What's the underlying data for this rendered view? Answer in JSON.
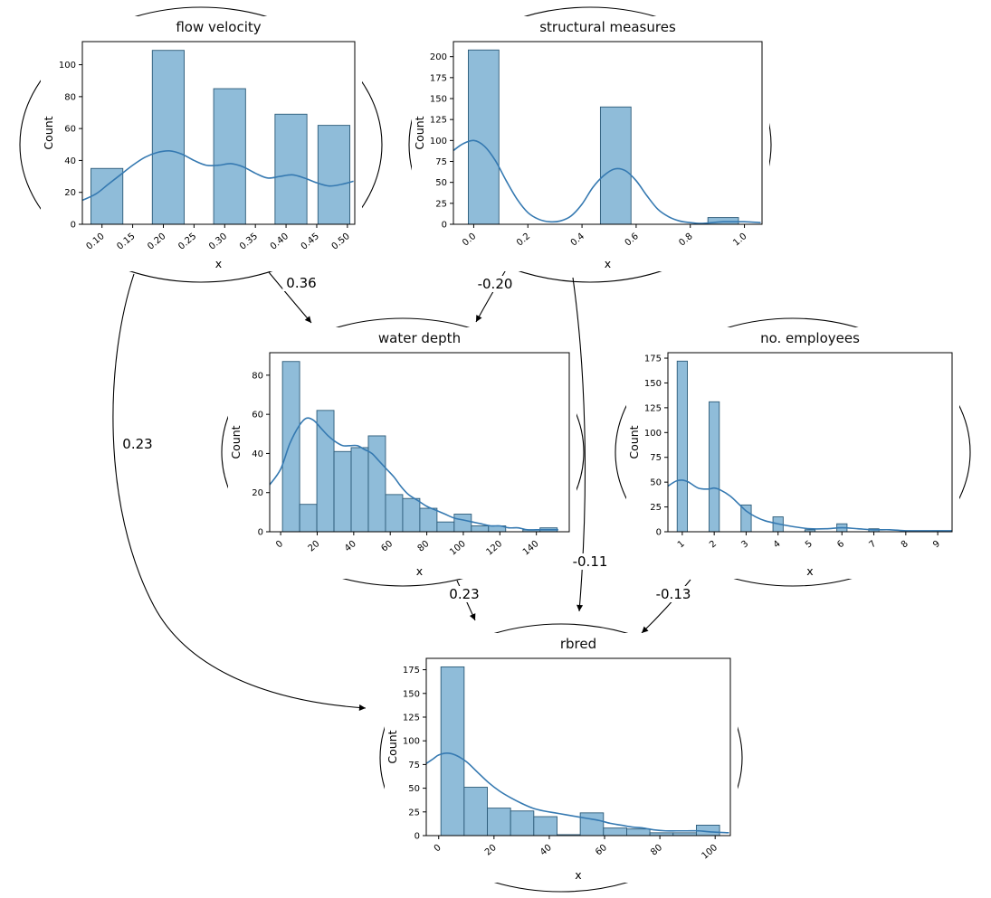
{
  "figure": {
    "background": "#ffffff"
  },
  "style": {
    "bar_fill": "#8fbcd9",
    "bar_edge": "#2b5a78",
    "kde_color": "#3579b1",
    "axis_color": "#000000",
    "edge_color": "#000000"
  },
  "chart_data": [
    {
      "id": "flow_velocity",
      "type": "histogram",
      "title": "flow velocity",
      "xlabel": "x",
      "ylabel": "Count",
      "xlim": [
        0.068,
        0.512
      ],
      "ylim": [
        0,
        114.5
      ],
      "xtick_vals": [
        0.1,
        0.15,
        0.2,
        0.25,
        0.3,
        0.35,
        0.4,
        0.45,
        0.5
      ],
      "xtick_labels": [
        "0.10",
        "0.15",
        "0.20",
        "0.25",
        "0.30",
        "0.35",
        "0.40",
        "0.45",
        "0.50"
      ],
      "ytick_vals": [
        0,
        20,
        40,
        60,
        80,
        100
      ],
      "ytick_labels": [
        "0",
        "20",
        "40",
        "60",
        "80",
        "100"
      ],
      "bars": [
        [
          0.082,
          0.052,
          35
        ],
        [
          0.182,
          0.052,
          109
        ],
        [
          0.282,
          0.052,
          85
        ],
        [
          0.382,
          0.052,
          69
        ],
        [
          0.452,
          0.052,
          62
        ]
      ],
      "kde": [
        [
          0.068,
          15
        ],
        [
          0.09,
          19
        ],
        [
          0.11,
          25
        ],
        [
          0.13,
          31
        ],
        [
          0.15,
          37
        ],
        [
          0.17,
          42
        ],
        [
          0.19,
          45
        ],
        [
          0.21,
          46
        ],
        [
          0.23,
          44
        ],
        [
          0.25,
          40
        ],
        [
          0.27,
          37
        ],
        [
          0.29,
          37
        ],
        [
          0.31,
          38
        ],
        [
          0.33,
          36
        ],
        [
          0.35,
          32
        ],
        [
          0.37,
          29
        ],
        [
          0.39,
          30
        ],
        [
          0.41,
          31
        ],
        [
          0.43,
          29
        ],
        [
          0.45,
          26
        ],
        [
          0.47,
          24
        ],
        [
          0.49,
          25
        ],
        [
          0.51,
          27
        ]
      ]
    },
    {
      "id": "structural_measures",
      "type": "histogram",
      "title": "structural measures",
      "xlabel": "x",
      "ylabel": "Count",
      "xlim": [
        -0.075,
        1.065
      ],
      "ylim": [
        0,
        218
      ],
      "xtick_vals": [
        0.0,
        0.2,
        0.4,
        0.6,
        0.8,
        1.0
      ],
      "xtick_labels": [
        "0.0",
        "0.2",
        "0.4",
        "0.6",
        "0.8",
        "1.0"
      ],
      "ytick_vals": [
        0,
        25,
        50,
        75,
        100,
        125,
        150,
        175,
        200
      ],
      "ytick_labels": [
        "0",
        "25",
        "50",
        "75",
        "100",
        "125",
        "150",
        "175",
        "200"
      ],
      "bars": [
        [
          -0.02,
          0.113,
          208
        ],
        [
          0.468,
          0.113,
          140
        ],
        [
          0.865,
          0.113,
          8
        ]
      ],
      "kde": [
        [
          -0.075,
          88
        ],
        [
          -0.04,
          96
        ],
        [
          0.0,
          100
        ],
        [
          0.04,
          93
        ],
        [
          0.08,
          76
        ],
        [
          0.12,
          52
        ],
        [
          0.16,
          30
        ],
        [
          0.2,
          14
        ],
        [
          0.24,
          6
        ],
        [
          0.28,
          3
        ],
        [
          0.32,
          4
        ],
        [
          0.36,
          10
        ],
        [
          0.4,
          24
        ],
        [
          0.44,
          44
        ],
        [
          0.48,
          58
        ],
        [
          0.52,
          66
        ],
        [
          0.56,
          64
        ],
        [
          0.6,
          52
        ],
        [
          0.64,
          34
        ],
        [
          0.68,
          18
        ],
        [
          0.72,
          9
        ],
        [
          0.76,
          4
        ],
        [
          0.8,
          2
        ],
        [
          0.84,
          1
        ],
        [
          0.88,
          2
        ],
        [
          0.92,
          3
        ],
        [
          0.96,
          3
        ],
        [
          1.0,
          3
        ],
        [
          1.06,
          2
        ]
      ]
    },
    {
      "id": "water_depth",
      "type": "histogram",
      "title": "water depth",
      "xlabel": "x",
      "ylabel": "Count",
      "xlim": [
        -6,
        158
      ],
      "ylim": [
        0,
        91.5
      ],
      "xtick_vals": [
        0,
        20,
        40,
        60,
        80,
        100,
        120,
        140
      ],
      "xtick_labels": [
        "0",
        "20",
        "40",
        "60",
        "80",
        "100",
        "120",
        "140"
      ],
      "ytick_vals": [
        0,
        20,
        40,
        60,
        80
      ],
      "ytick_labels": [
        "0",
        "20",
        "40",
        "60",
        "80"
      ],
      "bars": [
        [
          1,
          9.4,
          87
        ],
        [
          10.4,
          9.4,
          14
        ],
        [
          19.8,
          9.4,
          62
        ],
        [
          29.2,
          9.4,
          41
        ],
        [
          38.6,
          9.4,
          43
        ],
        [
          48,
          9.4,
          49
        ],
        [
          57.4,
          9.4,
          19
        ],
        [
          66.8,
          9.4,
          17
        ],
        [
          76.2,
          9.4,
          12
        ],
        [
          85.6,
          9.4,
          5
        ],
        [
          95,
          9.4,
          9
        ],
        [
          104.4,
          9.4,
          3
        ],
        [
          113.8,
          9.4,
          3
        ],
        [
          123.2,
          9.4,
          0
        ],
        [
          132.6,
          9.4,
          1
        ],
        [
          142,
          9.4,
          2
        ]
      ],
      "kde": [
        [
          -6,
          24
        ],
        [
          0,
          32
        ],
        [
          5,
          45
        ],
        [
          10,
          54
        ],
        [
          14,
          58
        ],
        [
          18,
          57
        ],
        [
          22,
          53
        ],
        [
          26,
          49
        ],
        [
          30,
          46
        ],
        [
          34,
          44
        ],
        [
          38,
          44
        ],
        [
          42,
          44
        ],
        [
          46,
          42
        ],
        [
          50,
          40
        ],
        [
          54,
          36
        ],
        [
          58,
          32
        ],
        [
          62,
          28
        ],
        [
          66,
          23
        ],
        [
          70,
          19
        ],
        [
          75,
          16
        ],
        [
          80,
          13
        ],
        [
          85,
          11
        ],
        [
          90,
          9
        ],
        [
          95,
          7
        ],
        [
          100,
          6
        ],
        [
          105,
          5
        ],
        [
          110,
          4
        ],
        [
          115,
          3
        ],
        [
          120,
          3
        ],
        [
          125,
          2
        ],
        [
          130,
          2
        ],
        [
          135,
          1
        ],
        [
          140,
          1
        ],
        [
          145,
          1
        ],
        [
          152,
          1
        ]
      ]
    },
    {
      "id": "no_employees",
      "type": "histogram",
      "title": "no. employees",
      "xlabel": "x",
      "ylabel": "Count",
      "xlim": [
        0.55,
        9.45
      ],
      "ylim": [
        0,
        180.5
      ],
      "xtick_vals": [
        1,
        2,
        3,
        4,
        5,
        6,
        7,
        8,
        9
      ],
      "xtick_labels": [
        "1",
        "2",
        "3",
        "4",
        "5",
        "6",
        "7",
        "8",
        "9"
      ],
      "ytick_vals": [
        0,
        25,
        50,
        75,
        100,
        125,
        150,
        175
      ],
      "ytick_labels": [
        "0",
        "25",
        "50",
        "75",
        "100",
        "125",
        "150",
        "175"
      ],
      "bars": [
        [
          0.84,
          0.32,
          172
        ],
        [
          1.84,
          0.32,
          131
        ],
        [
          2.84,
          0.32,
          27
        ],
        [
          3.84,
          0.32,
          15
        ],
        [
          4.84,
          0.32,
          2
        ],
        [
          5.84,
          0.32,
          8
        ],
        [
          6.84,
          0.32,
          3
        ],
        [
          7.84,
          0.32,
          1
        ],
        [
          8.84,
          0.32,
          1
        ]
      ],
      "kde": [
        [
          0.55,
          46
        ],
        [
          0.8,
          51
        ],
        [
          1.0,
          52
        ],
        [
          1.2,
          50
        ],
        [
          1.5,
          44
        ],
        [
          1.8,
          43
        ],
        [
          2.0,
          44
        ],
        [
          2.2,
          42
        ],
        [
          2.5,
          36
        ],
        [
          2.8,
          27
        ],
        [
          3.0,
          21
        ],
        [
          3.3,
          15
        ],
        [
          3.6,
          11
        ],
        [
          4.0,
          8
        ],
        [
          4.5,
          5
        ],
        [
          5.0,
          3
        ],
        [
          5.5,
          3
        ],
        [
          6.0,
          4
        ],
        [
          6.5,
          3
        ],
        [
          7.0,
          2
        ],
        [
          7.5,
          2
        ],
        [
          8.0,
          1
        ],
        [
          8.5,
          1
        ],
        [
          9.0,
          1
        ],
        [
          9.45,
          1
        ]
      ]
    },
    {
      "id": "rbred",
      "type": "histogram",
      "title": "rbred",
      "xlabel": "x",
      "ylabel": "Count",
      "xlim": [
        -4.5,
        105.5
      ],
      "ylim": [
        0,
        187
      ],
      "xtick_vals": [
        0,
        20,
        40,
        60,
        80,
        100
      ],
      "xtick_labels": [
        "0",
        "20",
        "40",
        "60",
        "80",
        "100"
      ],
      "ytick_vals": [
        0,
        25,
        50,
        75,
        100,
        125,
        150,
        175
      ],
      "ytick_labels": [
        "0",
        "25",
        "50",
        "75",
        "100",
        "125",
        "150",
        "175"
      ],
      "bars": [
        [
          0.8,
          8.4,
          178
        ],
        [
          9.2,
          8.4,
          51
        ],
        [
          17.6,
          8.4,
          29
        ],
        [
          26,
          8.4,
          26
        ],
        [
          34.4,
          8.4,
          20
        ],
        [
          42.8,
          8.4,
          1
        ],
        [
          51.2,
          8.4,
          24
        ],
        [
          59.6,
          8.4,
          8
        ],
        [
          68,
          8.4,
          7
        ],
        [
          76.4,
          8.4,
          3
        ],
        [
          84.8,
          8.4,
          3
        ],
        [
          93.2,
          8.4,
          11
        ]
      ],
      "kde": [
        [
          -4.5,
          76
        ],
        [
          -2,
          81
        ],
        [
          0,
          85
        ],
        [
          3,
          87
        ],
        [
          6,
          85
        ],
        [
          10,
          78
        ],
        [
          14,
          67
        ],
        [
          18,
          56
        ],
        [
          22,
          47
        ],
        [
          26,
          40
        ],
        [
          30,
          34
        ],
        [
          34,
          29
        ],
        [
          38,
          26
        ],
        [
          42,
          24
        ],
        [
          46,
          22
        ],
        [
          50,
          20
        ],
        [
          54,
          18
        ],
        [
          58,
          16
        ],
        [
          62,
          13
        ],
        [
          66,
          11
        ],
        [
          70,
          9
        ],
        [
          74,
          8
        ],
        [
          78,
          6
        ],
        [
          82,
          5
        ],
        [
          86,
          5
        ],
        [
          90,
          5
        ],
        [
          94,
          5
        ],
        [
          98,
          4
        ],
        [
          105,
          3
        ]
      ]
    }
  ],
  "edges": [
    {
      "from": "flow velocity",
      "to": "water depth",
      "label": "0.36"
    },
    {
      "from": "structural measures",
      "to": "water depth",
      "label": "-0.20"
    },
    {
      "from": "flow velocity",
      "to": "rbred",
      "label": "0.23"
    },
    {
      "from": "structural measures",
      "to": "rbred",
      "label": "-0.11"
    },
    {
      "from": "water depth",
      "to": "rbred",
      "label": "0.23"
    },
    {
      "from": "no. employees",
      "to": "rbred",
      "label": "-0.13"
    }
  ]
}
